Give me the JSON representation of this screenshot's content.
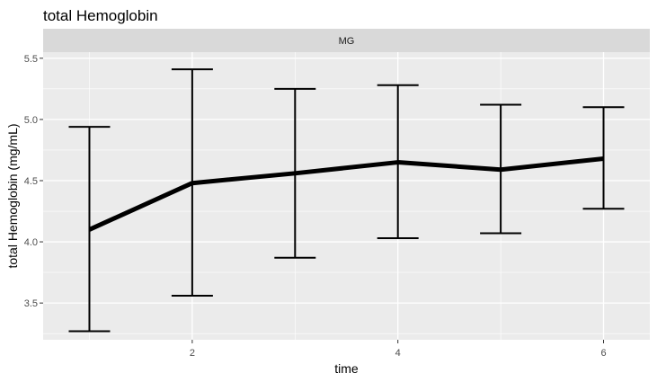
{
  "chart_data": {
    "type": "line",
    "title": "total Hemoglobin",
    "facet_label": "MG",
    "xlabel": "time",
    "ylabel": "total Hemoglobin (mg/mL)",
    "x": [
      1,
      2,
      3,
      4,
      5,
      6
    ],
    "y": [
      4.1,
      4.48,
      4.56,
      4.65,
      4.59,
      4.68
    ],
    "error_low": [
      3.27,
      3.56,
      3.87,
      4.03,
      4.07,
      4.27
    ],
    "error_high": [
      4.94,
      5.41,
      5.25,
      5.28,
      5.12,
      5.1
    ],
    "x_ticks": [
      2,
      4,
      6
    ],
    "y_ticks": [
      3.5,
      4.0,
      4.5,
      5.0,
      5.5
    ],
    "y_tick_labels": [
      "3.5",
      "4.0",
      "4.5",
      "5.0",
      "5.5"
    ],
    "xlim": [
      0.55,
      6.45
    ],
    "ylim": [
      3.2,
      5.55
    ],
    "grid": true,
    "colors": {
      "panel_bg": "#ebebeb",
      "strip_bg": "#d9d9d9",
      "grid": "#ffffff",
      "line": "#000000"
    }
  }
}
